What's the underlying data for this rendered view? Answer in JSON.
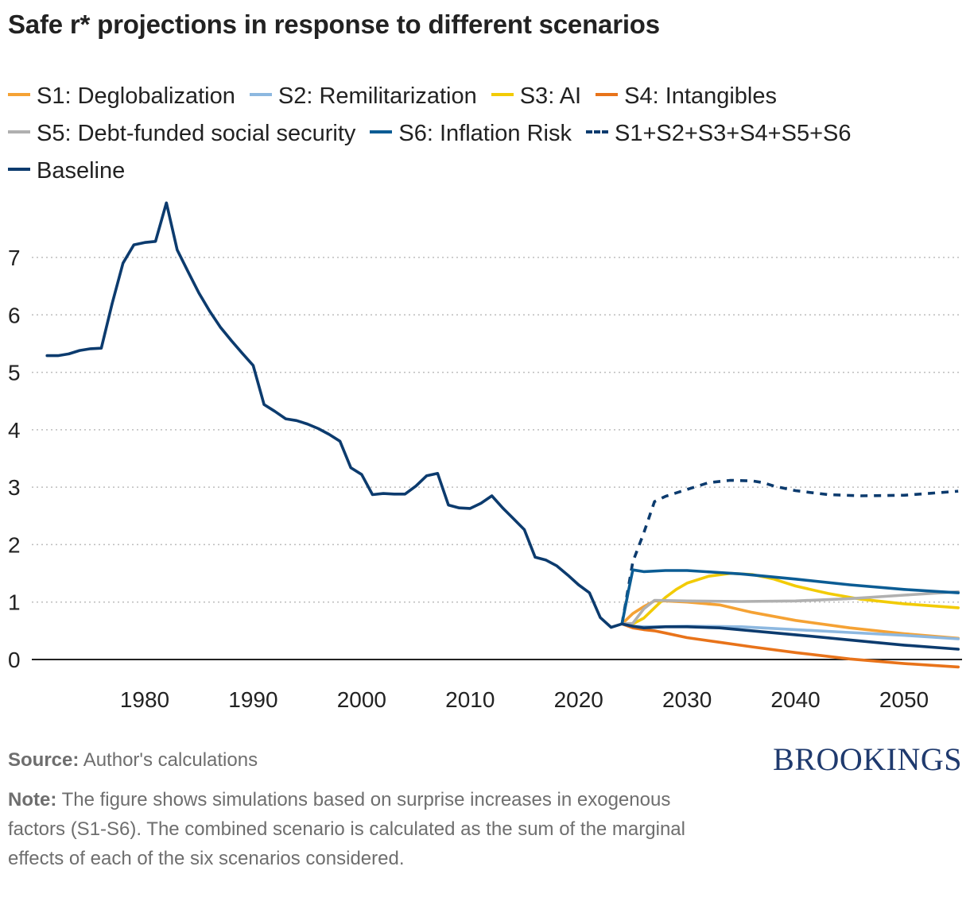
{
  "title": "Safe r* projections in response to different scenarios",
  "brand": "BROOKINGS",
  "source_label": "Source:",
  "source_text": "Author's calculations",
  "note_label": "Note:",
  "note_text": "The figure shows simulations based on surprise increases in exogenous factors (S1-S6). The combined scenario is calculated as the sum of the marginal effects of each of the six scenarios considered.",
  "chart_data": {
    "type": "line",
    "title": "Safe r* projections in response to different scenarios",
    "xlabel": "",
    "ylabel": "",
    "xlim": [
      1970,
      2056
    ],
    "ylim": [
      -0.2,
      8.0
    ],
    "x_ticks": [
      1980,
      1990,
      2000,
      2010,
      2020,
      2030,
      2040,
      2050
    ],
    "y_ticks": [
      0,
      1,
      2,
      3,
      4,
      5,
      6,
      7
    ],
    "grid": "horizontal dotted",
    "legend_position": "top",
    "series": [
      {
        "name": "S1: Deglobalization",
        "color": "#F5A234",
        "dashed": false,
        "x": [
          2024,
          2025,
          2026,
          2027,
          2028,
          2030,
          2033,
          2036,
          2040,
          2045,
          2050,
          2055
        ],
        "y": [
          0.62,
          0.8,
          0.92,
          1.02,
          1.02,
          1.0,
          0.95,
          0.82,
          0.68,
          0.55,
          0.45,
          0.37
        ]
      },
      {
        "name": "S2: Remilitarization",
        "color": "#8DB8E0",
        "dashed": false,
        "x": [
          2024,
          2025,
          2026,
          2027,
          2030,
          2035,
          2040,
          2045,
          2050,
          2055
        ],
        "y": [
          0.62,
          0.58,
          0.57,
          0.57,
          0.58,
          0.57,
          0.52,
          0.47,
          0.42,
          0.36
        ]
      },
      {
        "name": "S3: AI",
        "color": "#F2CB05",
        "dashed": false,
        "x": [
          2024,
          2025,
          2026,
          2027,
          2028,
          2029,
          2030,
          2032,
          2034,
          2036,
          2038,
          2040,
          2043,
          2046,
          2050,
          2055
        ],
        "y": [
          0.62,
          0.62,
          0.72,
          0.9,
          1.08,
          1.22,
          1.33,
          1.45,
          1.5,
          1.48,
          1.4,
          1.28,
          1.15,
          1.05,
          0.97,
          0.9
        ]
      },
      {
        "name": "S4: Intangibles",
        "color": "#E8731A",
        "dashed": false,
        "x": [
          2024,
          2025,
          2026,
          2027,
          2028,
          2030,
          2033,
          2036,
          2040,
          2045,
          2050,
          2055
        ],
        "y": [
          0.62,
          0.55,
          0.52,
          0.5,
          0.46,
          0.38,
          0.3,
          0.22,
          0.12,
          0.01,
          -0.07,
          -0.13
        ]
      },
      {
        "name": "S5: Debt-funded social security",
        "color": "#B0B0B0",
        "dashed": false,
        "x": [
          2024,
          2025,
          2026,
          2027,
          2030,
          2035,
          2040,
          2045,
          2050,
          2055
        ],
        "y": [
          0.62,
          0.63,
          0.88,
          1.03,
          1.02,
          1.01,
          1.02,
          1.06,
          1.12,
          1.18
        ]
      },
      {
        "name": "S6: Inflation Risk",
        "color": "#0B5C94",
        "dashed": false,
        "x": [
          2024,
          2024.6,
          2025,
          2026,
          2028,
          2030,
          2035,
          2040,
          2045,
          2050,
          2055
        ],
        "y": [
          0.62,
          1.2,
          1.56,
          1.53,
          1.55,
          1.55,
          1.49,
          1.4,
          1.3,
          1.22,
          1.16
        ]
      },
      {
        "name": "S1+S2+S3+S4+S5+S6",
        "color": "#0C3B6E",
        "dashed": true,
        "x": [
          2024,
          2025,
          2026,
          2027,
          2028,
          2030,
          2032,
          2034,
          2036,
          2037,
          2038,
          2040,
          2043,
          2046,
          2050,
          2055
        ],
        "y": [
          0.62,
          1.7,
          2.2,
          2.75,
          2.84,
          2.96,
          3.08,
          3.12,
          3.11,
          3.08,
          3.02,
          2.94,
          2.87,
          2.85,
          2.86,
          2.93
        ]
      },
      {
        "name": "Baseline",
        "color": "#0C3B6E",
        "dashed": false,
        "x": [
          1971,
          1972,
          1973,
          1974,
          1975,
          1976,
          1977,
          1978,
          1979,
          1980,
          1981,
          1982,
          1983,
          1984,
          1985,
          1986,
          1987,
          1988,
          1989,
          1990,
          1991,
          1992,
          1993,
          1994,
          1995,
          1996,
          1997,
          1998,
          1999,
          2000,
          2001,
          2002,
          2003,
          2004,
          2005,
          2006,
          2007,
          2008,
          2009,
          2010,
          2011,
          2012,
          2013,
          2014,
          2015,
          2016,
          2017,
          2018,
          2019,
          2020,
          2021,
          2022,
          2023,
          2024,
          2025,
          2026,
          2028,
          2030,
          2033,
          2036,
          2040,
          2045,
          2050,
          2055
        ],
        "y": [
          5.29,
          5.29,
          5.32,
          5.38,
          5.41,
          5.42,
          6.2,
          6.9,
          7.22,
          7.26,
          7.28,
          7.95,
          7.13,
          6.75,
          6.38,
          6.06,
          5.78,
          5.55,
          5.33,
          5.12,
          4.44,
          4.32,
          4.19,
          4.16,
          4.1,
          4.02,
          3.92,
          3.8,
          3.34,
          3.22,
          2.87,
          2.89,
          2.88,
          2.88,
          3.02,
          3.2,
          3.24,
          2.69,
          2.64,
          2.63,
          2.72,
          2.85,
          2.64,
          2.45,
          2.26,
          1.78,
          1.73,
          1.63,
          1.47,
          1.3,
          1.16,
          0.73,
          0.56,
          0.62,
          0.58,
          0.55,
          0.57,
          0.57,
          0.55,
          0.5,
          0.43,
          0.34,
          0.25,
          0.18
        ]
      }
    ]
  }
}
